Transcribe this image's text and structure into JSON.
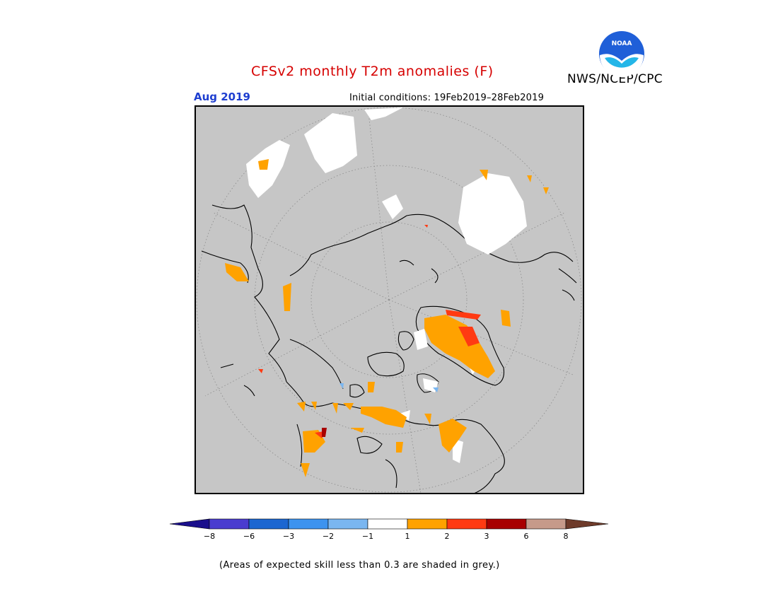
{
  "header": {
    "title": "CFSv2 monthly T2m anomalies (F)",
    "agency": "NWS/NCEP/CPC",
    "valid_month": "Aug 2019",
    "initial_conditions": "Initial conditions: 19Feb2019–28Feb2019",
    "logo_text": "NOAA"
  },
  "legend": {
    "ticks": [
      "−8",
      "−6",
      "−3",
      "−2",
      "−1",
      "1",
      "2",
      "3",
      "6",
      "8"
    ],
    "colors": {
      "below_min": "#1a0f8c",
      "minus8_minus6": "#4a3ccf",
      "minus6_minus3": "#1c66d1",
      "minus3_minus2": "#3d93ef",
      "minus2_minus1": "#7ab6f0",
      "minus1_1": "#ffffff",
      "1_2": "#ffa200",
      "2_3": "#ff3a12",
      "3_6": "#a80000",
      "6_8": "#c69a8a",
      "above_max": "#6e3b2a"
    }
  },
  "map": {
    "skill_shade_color": "#c6c6c6",
    "frame_color": "#000000"
  },
  "footnote": "(Areas of expected skill less than 0.3 are shaded in grey.)"
}
